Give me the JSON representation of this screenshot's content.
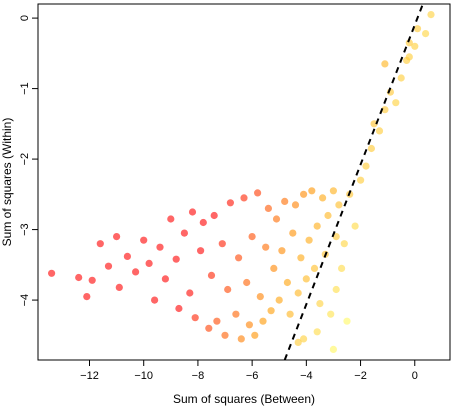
{
  "chart_data": {
    "type": "scatter",
    "title": "",
    "xlabel": "Sum of squares (Between)",
    "ylabel": "Sum of squares (Within)",
    "xlim": [
      -13.9,
      1.3
    ],
    "ylim": [
      -4.85,
      0.2
    ],
    "xticks": [
      -12,
      -10,
      -8,
      -6,
      -4,
      -2,
      0
    ],
    "xtick_labels": [
      "−12",
      "−10",
      "−8",
      "−6",
      "−4",
      "−2",
      "0"
    ],
    "yticks": [
      -4,
      -3,
      -2,
      -1,
      0
    ],
    "ytick_labels": [
      "−4",
      "−3",
      "−2",
      "−1",
      "0"
    ],
    "grid": false,
    "legend": "none",
    "color_scale": {
      "from": "#ff0000",
      "mid": "#ff9900",
      "to": "#ffff66",
      "encodes": "x - y",
      "range": [
        -4.5,
        2.0
      ]
    },
    "marker_opacity": 0.6,
    "reference_line": {
      "style": "dashed",
      "color": "#000000",
      "points": [
        [
          -4.8,
          -4.85
        ],
        [
          0.3,
          0.2
        ]
      ]
    },
    "series": [
      {
        "points": [
          [
            -13.4,
            -3.62
          ],
          [
            -12.4,
            -3.68
          ],
          [
            -11.9,
            -3.72
          ],
          [
            -12.1,
            -3.95
          ],
          [
            -11.6,
            -3.2
          ],
          [
            -11.3,
            -3.52
          ],
          [
            -11.0,
            -3.1
          ],
          [
            -10.9,
            -3.82
          ],
          [
            -10.6,
            -3.38
          ],
          [
            -10.3,
            -3.6
          ],
          [
            -10.0,
            -3.15
          ],
          [
            -9.8,
            -3.48
          ],
          [
            -9.6,
            -4.0
          ],
          [
            -9.4,
            -3.25
          ],
          [
            -9.2,
            -3.7
          ],
          [
            -9.0,
            -2.85
          ],
          [
            -8.8,
            -3.42
          ],
          [
            -8.7,
            -4.12
          ],
          [
            -8.5,
            -3.05
          ],
          [
            -8.3,
            -3.9
          ],
          [
            -8.2,
            -2.75
          ],
          [
            -8.1,
            -4.25
          ],
          [
            -7.9,
            -3.3
          ],
          [
            -7.8,
            -2.9
          ],
          [
            -7.6,
            -4.4
          ],
          [
            -7.5,
            -3.65
          ],
          [
            -7.4,
            -2.8
          ],
          [
            -7.3,
            -4.3
          ],
          [
            -7.1,
            -3.2
          ],
          [
            -7.0,
            -4.5
          ],
          [
            -6.9,
            -3.85
          ],
          [
            -6.8,
            -2.62
          ],
          [
            -6.6,
            -4.2
          ],
          [
            -6.5,
            -3.4
          ],
          [
            -6.4,
            -4.55
          ],
          [
            -6.3,
            -2.55
          ],
          [
            -6.2,
            -3.75
          ],
          [
            -6.1,
            -4.35
          ],
          [
            -6.0,
            -3.1
          ],
          [
            -5.9,
            -4.5
          ],
          [
            -5.8,
            -2.48
          ],
          [
            -5.7,
            -3.95
          ],
          [
            -5.6,
            -4.3
          ],
          [
            -5.5,
            -3.25
          ],
          [
            -5.4,
            -2.7
          ],
          [
            -5.3,
            -4.15
          ],
          [
            -5.2,
            -3.55
          ],
          [
            -5.1,
            -2.85
          ],
          [
            -5.0,
            -4.0
          ],
          [
            -4.9,
            -3.3
          ],
          [
            -4.8,
            -2.6
          ],
          [
            -4.7,
            -3.75
          ],
          [
            -4.6,
            -4.2
          ],
          [
            -4.5,
            -3.05
          ],
          [
            -4.4,
            -2.65
          ],
          [
            -4.3,
            -3.9
          ],
          [
            -4.2,
            -3.4
          ],
          [
            -4.1,
            -2.5
          ],
          [
            -4.0,
            -3.7
          ],
          [
            -3.9,
            -3.15
          ],
          [
            -3.8,
            -2.45
          ],
          [
            -3.7,
            -3.55
          ],
          [
            -3.6,
            -2.95
          ],
          [
            -3.5,
            -4.05
          ],
          [
            -3.4,
            -2.55
          ],
          [
            -3.3,
            -3.35
          ],
          [
            -3.2,
            -2.8
          ],
          [
            -3.0,
            -2.45
          ],
          [
            -2.9,
            -3.1
          ],
          [
            -2.8,
            -2.65
          ],
          [
            -2.6,
            -3.2
          ],
          [
            -2.4,
            -2.5
          ],
          [
            -2.2,
            -2.95
          ],
          [
            -2.0,
            -2.3
          ],
          [
            -1.8,
            -2.1
          ],
          [
            -1.6,
            -1.85
          ],
          [
            -1.5,
            -1.5
          ],
          [
            -1.3,
            -1.6
          ],
          [
            -1.1,
            -1.3
          ],
          [
            -0.9,
            -1.05
          ],
          [
            -0.7,
            -1.2
          ],
          [
            -0.5,
            -0.85
          ],
          [
            -0.3,
            -0.6
          ],
          [
            -0.2,
            -0.35
          ],
          [
            0.0,
            -0.4
          ],
          [
            0.1,
            -0.15
          ],
          [
            0.4,
            -0.22
          ],
          [
            0.6,
            0.05
          ],
          [
            -0.2,
            -0.55
          ],
          [
            -1.1,
            -0.65
          ],
          [
            -3.0,
            -4.7
          ],
          [
            -3.6,
            -4.45
          ],
          [
            -4.3,
            -4.6
          ],
          [
            -2.5,
            -4.3
          ],
          [
            -2.9,
            -3.85
          ],
          [
            -3.1,
            -4.2
          ],
          [
            -4.1,
            -4.55
          ],
          [
            -2.7,
            -3.55
          ]
        ]
      }
    ]
  }
}
